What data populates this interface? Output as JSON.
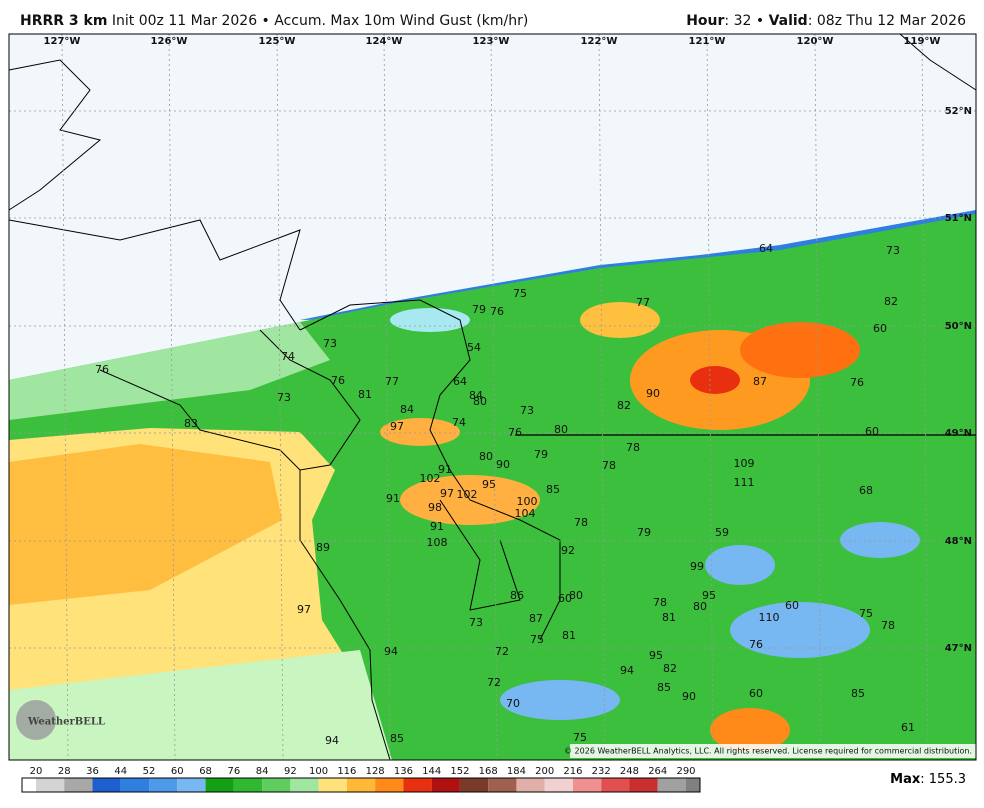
{
  "header": {
    "title": "HRRR 3 km",
    "subtitle": "Init 00z 11 Mar 2026 • Accum. Max 10m Wind Gust (km/hr)",
    "hour_label": "Hour",
    "hour": ": 32 •",
    "valid_label": "Valid",
    "valid": ": 08z Thu 12 Mar 2026"
  },
  "lon_labels": [
    "127°W",
    "126°W",
    "125°W",
    "124°W",
    "123°W",
    "122°W",
    "121°W",
    "120°W",
    "119°W"
  ],
  "lat_labels": [
    "52°N",
    "51°N",
    "50°N",
    "49°N",
    "48°N",
    "47°N"
  ],
  "points": [
    76,
    74,
    73,
    76,
    77,
    81,
    73,
    83,
    84,
    97,
    74,
    79,
    76,
    75,
    54,
    64,
    84,
    80,
    73,
    76,
    80,
    82,
    90,
    77,
    64,
    73,
    82,
    60,
    87,
    76,
    60,
    78,
    78,
    109,
    111,
    68,
    79,
    80,
    90,
    91,
    102,
    95,
    85,
    97,
    102,
    100,
    104,
    98,
    91,
    91,
    78,
    79,
    59,
    108,
    89,
    92,
    99,
    97,
    86,
    80,
    60,
    78,
    95,
    80,
    87,
    81,
    110,
    60,
    75,
    78,
    73,
    75,
    81,
    72,
    94,
    76,
    95,
    94,
    82,
    72,
    85,
    90,
    60,
    85,
    70,
    61,
    94,
    85,
    75
  ],
  "copyright": "© 2026 WeatherBELL Analytics, LLC. All rights reserved. License required for commercial distribution.",
  "logo": "WeatherBELL",
  "colorbar": {
    "ticks": [
      20,
      28,
      36,
      44,
      52,
      60,
      68,
      76,
      84,
      92,
      100,
      116,
      128,
      136,
      144,
      152,
      168,
      184,
      200,
      216,
      232,
      248,
      264,
      290
    ],
    "colors": [
      "#ffffff",
      "#d4d4d4",
      "#a8a8a8",
      "#1e5fd0",
      "#2f7fe0",
      "#4f9ae8",
      "#78b8f2",
      "#14a014",
      "#30b830",
      "#60cc60",
      "#a0e6a0",
      "#ffe27a",
      "#ffb838",
      "#ff8a1a",
      "#e83010",
      "#b01010",
      "#7a3a2a",
      "#a06050",
      "#e0b0a8",
      "#f0d0d0",
      "#f09090",
      "#e05050",
      "#c83030",
      "#a0a0a0",
      "#808080"
    ]
  },
  "max_label": "Max",
  "max_value": ": 155.3"
}
